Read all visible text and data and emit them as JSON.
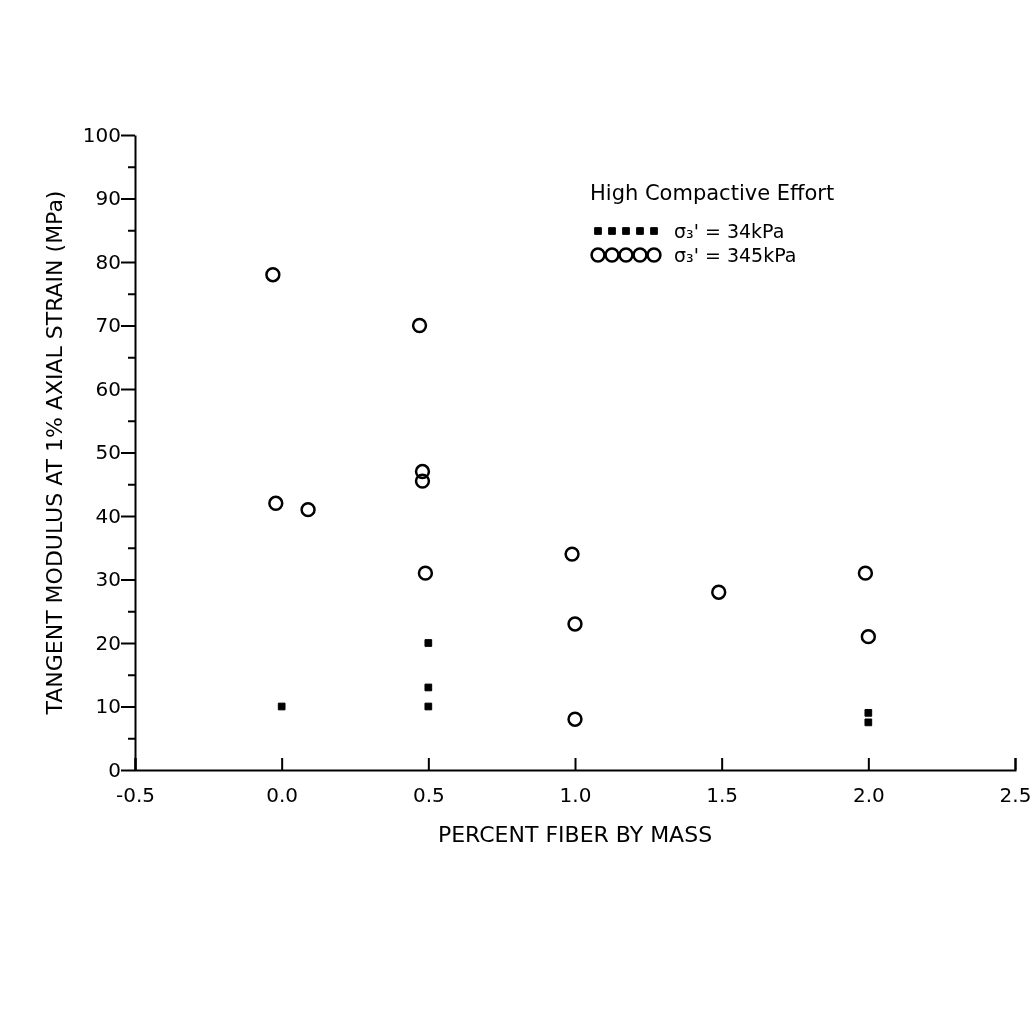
{
  "chart_data": {
    "type": "scatter",
    "xlabel": "PERCENT FIBER BY MASS",
    "ylabel": "TANGENT MODULUS AT 1% AXIAL STRAIN (MPa)",
    "legend_title": "High Compactive Effort",
    "legend": "top right",
    "xlim": [
      -0.5,
      2.5
    ],
    "ylim": [
      0,
      100
    ],
    "xticks": [
      {
        "value": -0.5,
        "label": "-0.5"
      },
      {
        "value": 0,
        "label": "0.0"
      },
      {
        "value": 0.5,
        "label": "0.5"
      },
      {
        "value": 1,
        "label": "1.0"
      },
      {
        "value": 1.5,
        "label": "1.5"
      },
      {
        "value": 2,
        "label": "2.0"
      },
      {
        "value": 2.5,
        "label": "2.5"
      }
    ],
    "yticks": [
      0,
      {
        "value": 5,
        "label": null
      },
      10,
      {
        "value": 15,
        "label": null
      },
      20,
      {
        "value": 25,
        "label": null
      },
      30,
      {
        "value": 35,
        "label": null
      },
      40,
      {
        "value": 45,
        "label": null
      },
      50,
      {
        "value": 55,
        "label": null
      },
      60,
      {
        "value": 65,
        "label": null
      },
      70,
      {
        "value": 75,
        "label": null
      },
      80,
      {
        "value": 85,
        "label": null
      },
      90,
      {
        "value": 95,
        "label": null
      },
      100
    ],
    "grid": false,
    "series": [
      {
        "name": "σ₃' = 34kPa",
        "color": "#000000",
        "marker": "square",
        "x": [
          0,
          0.5,
          0.5,
          0.5,
          2,
          2
        ],
        "values": [
          10,
          20,
          13,
          10,
          9,
          7.5
        ]
      },
      {
        "name": "σ₃' = 345kPa",
        "color": "#000000",
        "marker": "circle",
        "x": [
          -0.03,
          -0.02,
          0.09,
          0.47,
          0.48,
          0.48,
          0.49,
          0.99,
          1,
          1,
          1.49,
          1.99,
          2
        ],
        "values": [
          78,
          42,
          41,
          70,
          47,
          45.5,
          31,
          34,
          23,
          8,
          28,
          31,
          21
        ]
      }
    ]
  }
}
